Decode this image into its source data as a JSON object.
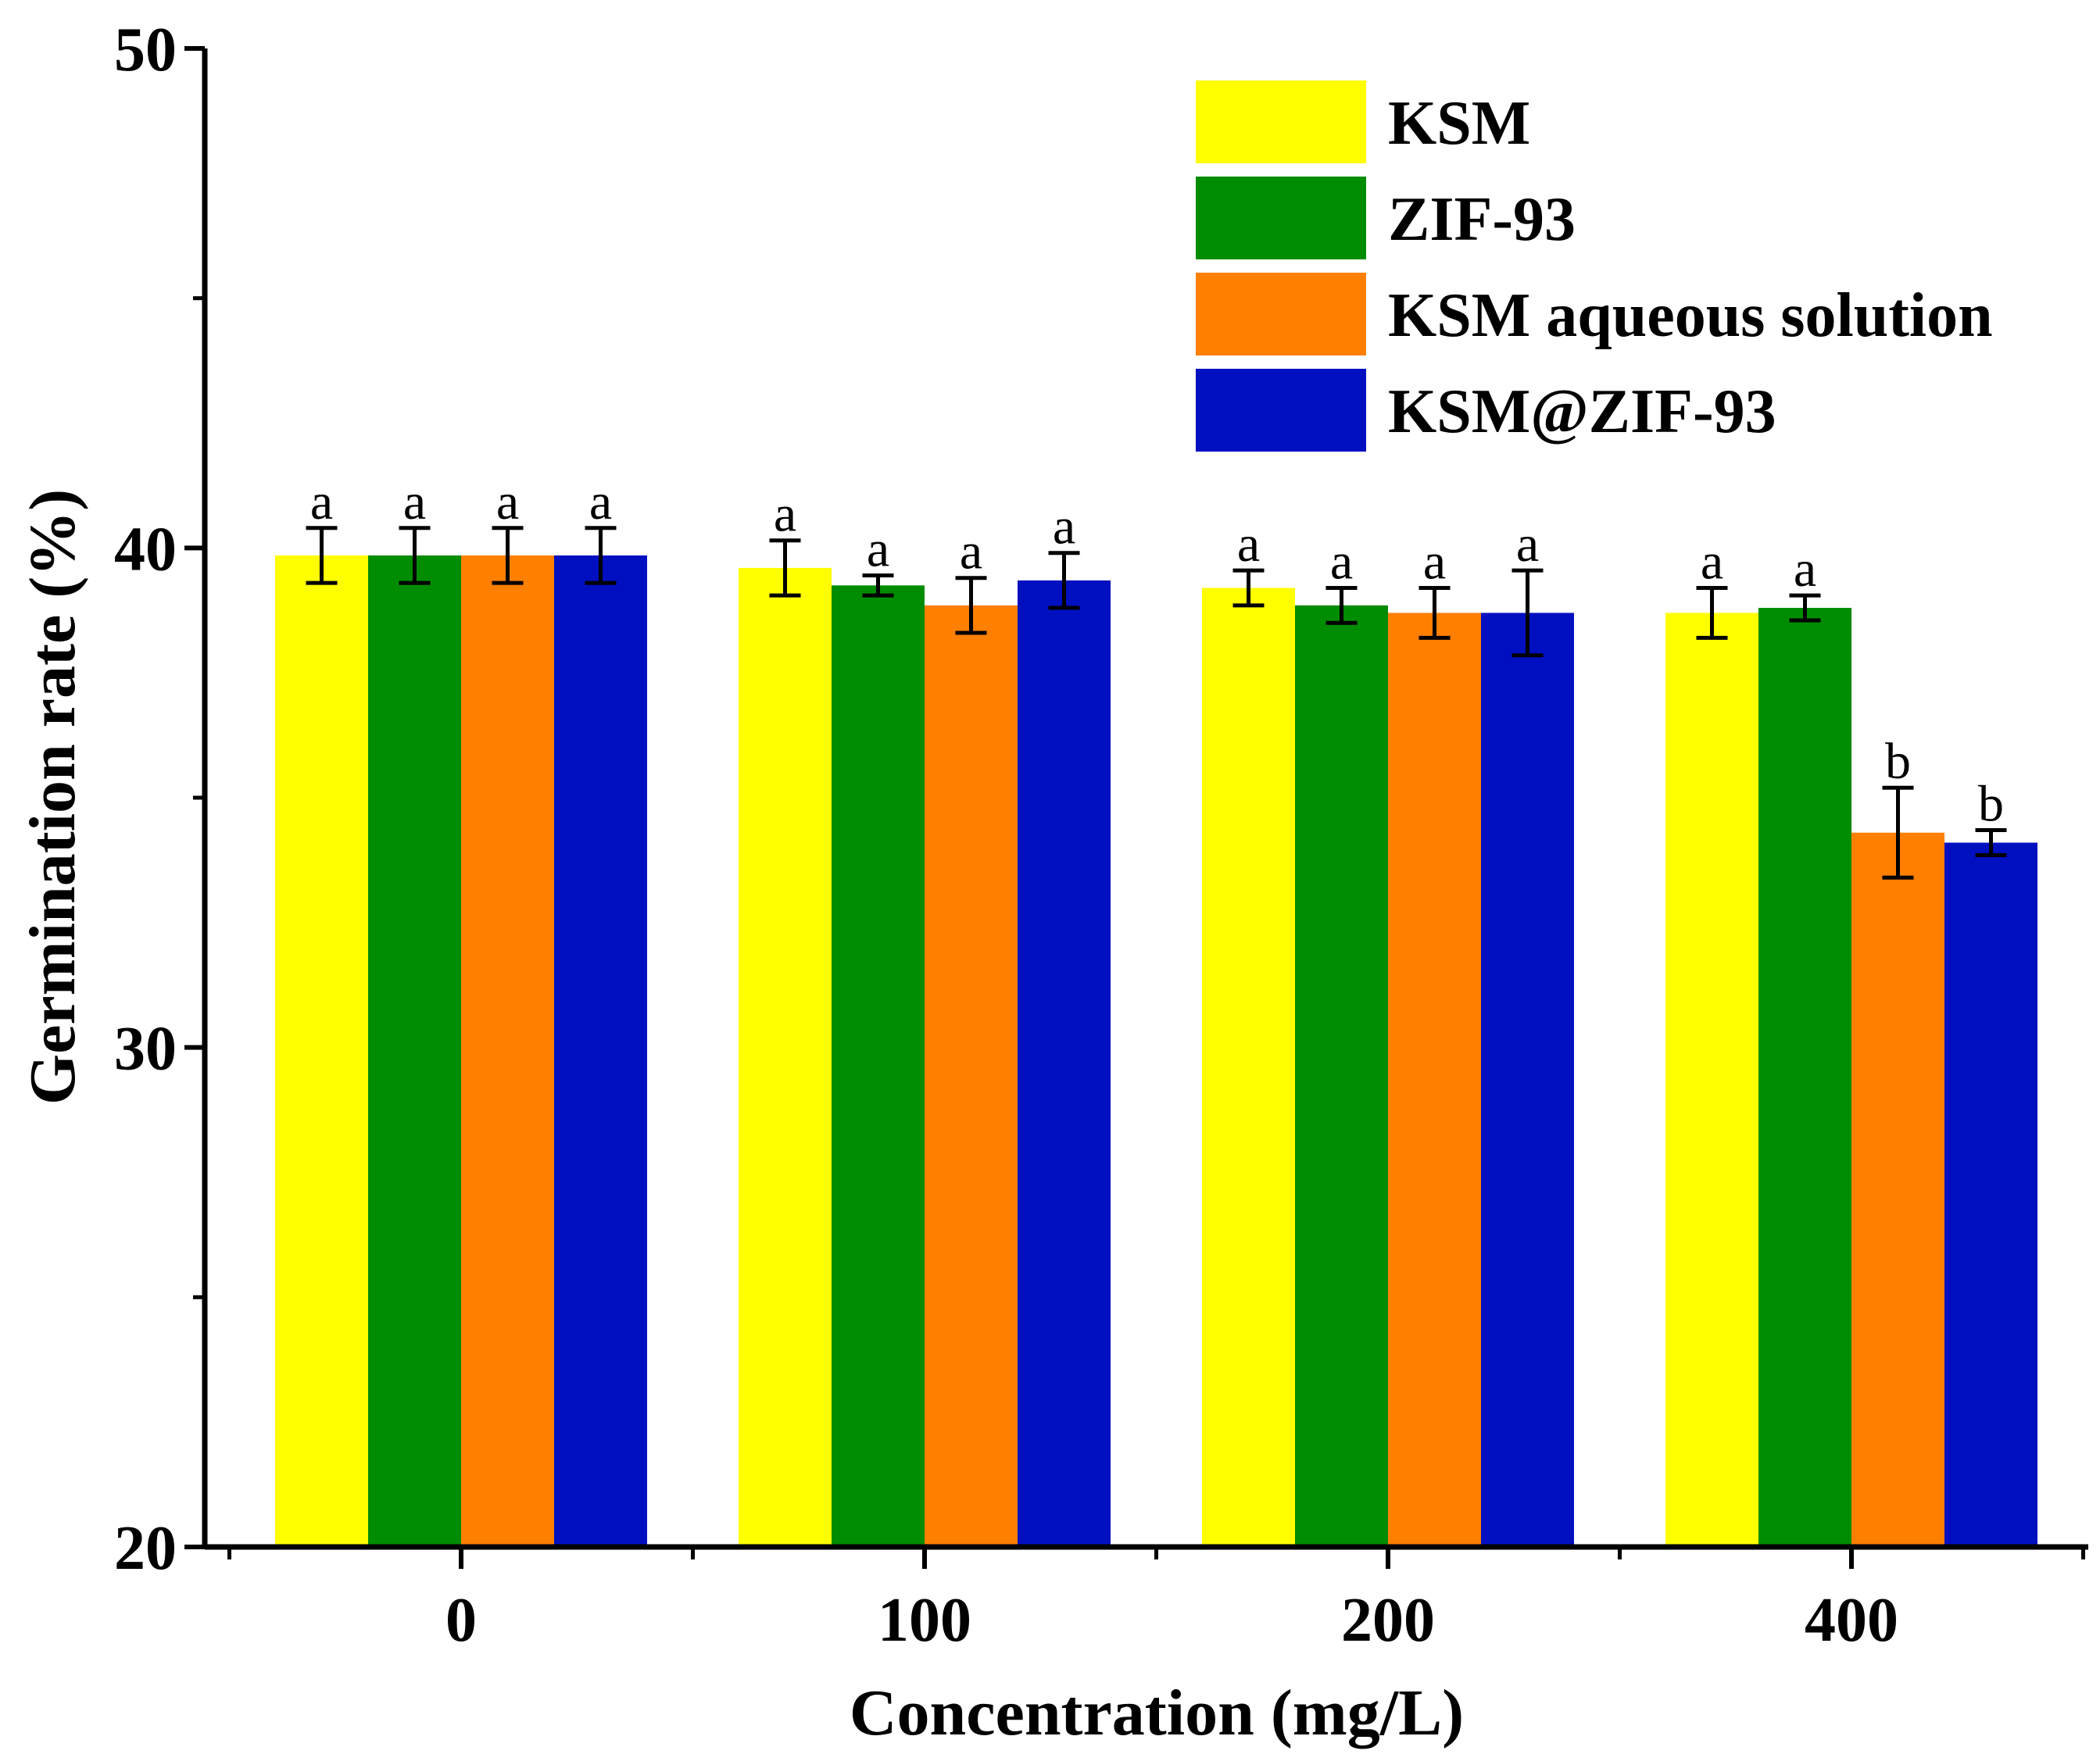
{
  "chart_data": {
    "type": "bar",
    "xlabel": "Concentration (mg/L)",
    "ylabel": "Germination rate (%)",
    "ylim": [
      20,
      50
    ],
    "yticks": [
      20,
      30,
      40,
      50
    ],
    "categories": [
      "0",
      "100",
      "200",
      "400"
    ],
    "legend_position": "top-right",
    "series": [
      {
        "name": "KSM",
        "color": "#FFFF00",
        "values": [
          39.85,
          39.6,
          39.2,
          38.7
        ],
        "errors": [
          0.55,
          0.55,
          0.35,
          0.5
        ],
        "labels": [
          "a",
          "a",
          "a",
          "a"
        ]
      },
      {
        "name": "ZIF-93",
        "color": "#008C00",
        "values": [
          39.85,
          39.25,
          38.85,
          38.8
        ],
        "errors": [
          0.55,
          0.2,
          0.35,
          0.25
        ],
        "labels": [
          "a",
          "a",
          "a",
          "a"
        ]
      },
      {
        "name": "KSM aqueous solution",
        "color": "#FF7F00",
        "values": [
          39.85,
          38.85,
          38.7,
          34.3
        ],
        "errors": [
          0.55,
          0.55,
          0.5,
          0.9
        ],
        "labels": [
          "a",
          "a",
          "a",
          "b"
        ]
      },
      {
        "name": "KSM@ZIF-93",
        "color": "#0010C0",
        "values": [
          39.85,
          39.35,
          38.7,
          34.1
        ],
        "errors": [
          0.55,
          0.55,
          0.85,
          0.25
        ],
        "labels": [
          "a",
          "a",
          "a",
          "b"
        ]
      }
    ]
  }
}
